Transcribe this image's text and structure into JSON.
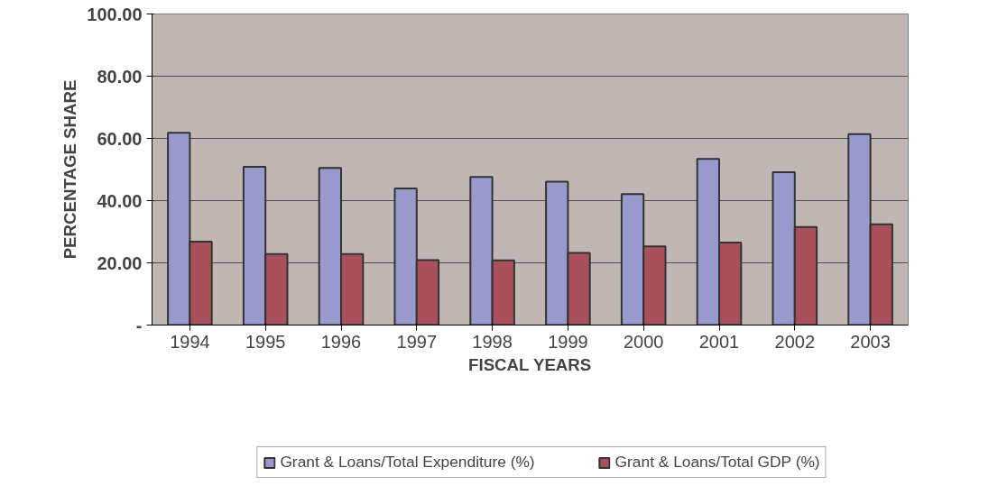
{
  "chart_data": {
    "type": "bar",
    "xlabel": "FISCAL YEARS",
    "ylabel": "PERCENTAGE SHARE",
    "categories": [
      "1994",
      "1995",
      "1996",
      "1997",
      "1998",
      "1999",
      "2000",
      "2001",
      "2002",
      "2003"
    ],
    "series": [
      {
        "name": "Grant & Loans/Total Expenditure (%)",
        "color": "#9999cc",
        "values": [
          61.8,
          50.9,
          50.5,
          43.9,
          47.6,
          46.1,
          42.1,
          53.4,
          49.1,
          61.4
        ]
      },
      {
        "name": "Grant & Loans/Total GDP (%)",
        "color": "#a8505c",
        "values": [
          26.8,
          22.8,
          22.8,
          20.9,
          20.8,
          23.2,
          25.3,
          26.5,
          31.5,
          32.4
        ]
      }
    ],
    "ylim": [
      0,
      100
    ],
    "yticks": [
      {
        "value": 0,
        "label": "-"
      },
      {
        "value": 20,
        "label": "20.00"
      },
      {
        "value": 40,
        "label": "40.00"
      },
      {
        "value": 60,
        "label": "60.00"
      },
      {
        "value": 80,
        "label": "80.00"
      },
      {
        "value": 100,
        "label": "100.00"
      }
    ],
    "grid": "y",
    "legend": "bottom"
  }
}
